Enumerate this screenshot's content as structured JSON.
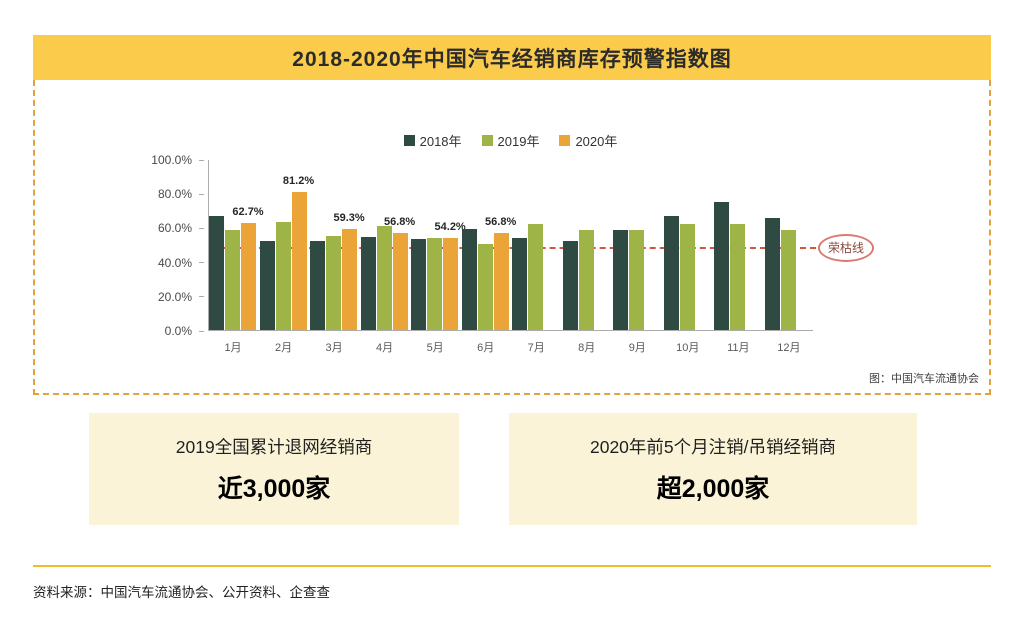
{
  "panel": {
    "title": "2018-2020年中国汽车经销商库存预警指数图",
    "caption": "图：中国汽车流通协会"
  },
  "chart_data": {
    "type": "bar",
    "title": "2018-2020年中国汽车经销商库存预警指数图",
    "categories": [
      "1月",
      "2月",
      "3月",
      "4月",
      "5月",
      "6月",
      "7月",
      "8月",
      "9月",
      "10月",
      "11月",
      "12月"
    ],
    "series": [
      {
        "name": "2018年",
        "color": "#2F4A43",
        "values": [
          67.2,
          52.4,
          52.1,
          54.6,
          53.7,
          59.2,
          53.9,
          52.2,
          58.9,
          66.9,
          75.1,
          66.1
        ]
      },
      {
        "name": "2019年",
        "color": "#9FB447",
        "values": [
          58.9,
          63.6,
          55.3,
          61.0,
          54.0,
          50.4,
          62.2,
          58.8,
          58.6,
          62.4,
          62.5,
          59.0
        ]
      },
      {
        "name": "2020年",
        "color": "#EBA437",
        "values": [
          62.7,
          81.2,
          59.3,
          56.8,
          54.2,
          56.8,
          null,
          null,
          null,
          null,
          null,
          null
        ]
      }
    ],
    "labeled_series": "2020年",
    "data_labels": [
      "62.7%",
      "81.2%",
      "59.3%",
      "56.8%",
      "54.2%",
      "56.8%",
      null,
      null,
      null,
      null,
      null,
      null
    ],
    "y_ticks": [
      "0.0%",
      "20.0%",
      "40.0%",
      "60.0%",
      "80.0%",
      "100.0%"
    ],
    "ylim": [
      0,
      100
    ],
    "xlabel": "",
    "ylabel": "",
    "grid": false,
    "legend_position": "top",
    "reference_line": {
      "value": 50,
      "label": "荣枯线",
      "line_color": "#D4553F",
      "badge_border_color": "#D97B72"
    }
  },
  "highlight_cards": [
    {
      "line1": "2019全国累计退网经销商",
      "line2": "近3,000家"
    },
    {
      "line1": "2020年前5个月注销/吊销经销商",
      "line2": "超2,000家"
    }
  ],
  "footer": {
    "source": "资料来源：中国汽车流通协会、公开资料、企查查"
  },
  "colors": {
    "title_bar_bg": "#FBCB4B",
    "panel_dashed_border": "#E3A23E",
    "card_bg": "#FBF3D8",
    "divider": "#F0BA2E"
  }
}
